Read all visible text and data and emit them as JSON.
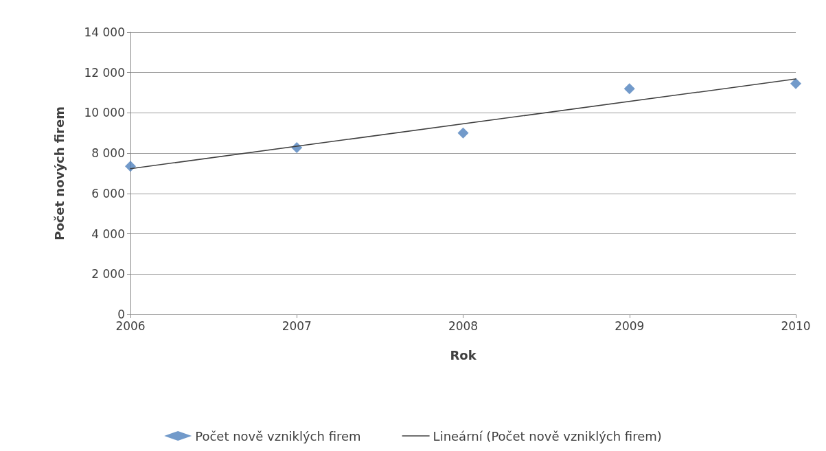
{
  "chart_data": {
    "type": "scatter",
    "xlabel": "Rok",
    "ylabel": "Počet nových firem",
    "x": [
      2006,
      2007,
      2008,
      2009,
      2010
    ],
    "series": [
      {
        "name": "Počet nově vzniklých firem",
        "color": "#4f81bd",
        "marker": "diamond",
        "values": [
          7350,
          8280,
          9000,
          11200,
          11450
        ]
      },
      {
        "name": "Lineární (Počet nově vzniklých firem)",
        "type": "line",
        "color": "#404040",
        "marker": "none",
        "line_style": "solid",
        "x": [
          2006,
          2010
        ],
        "values": [
          7230,
          11680
        ]
      }
    ],
    "xlim": [
      2006,
      2010
    ],
    "xticks": [
      2006,
      2007,
      2008,
      2009,
      2010
    ],
    "ylim": [
      0,
      14000
    ],
    "yticks": [
      {
        "value": 0,
        "label": "0"
      },
      {
        "value": 2000,
        "label": "2 000"
      },
      {
        "value": 4000,
        "label": "4 000"
      },
      {
        "value": 6000,
        "label": "6 000"
      },
      {
        "value": 8000,
        "label": "8 000"
      },
      {
        "value": 10000,
        "label": "10 000"
      },
      {
        "value": 12000,
        "label": "12 000"
      },
      {
        "value": 14000,
        "label": "14 000"
      }
    ],
    "grid": "y",
    "legend": "bottom"
  }
}
